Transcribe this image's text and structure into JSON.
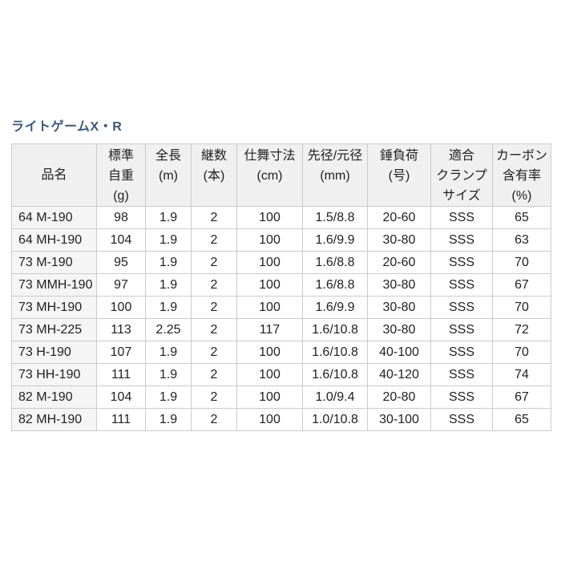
{
  "page": {
    "title": "ライトゲームX・R"
  },
  "colors": {
    "title_text": "#3b5878",
    "header_bg": "#f0f0f0",
    "row_label_bg": "#f5f5f5",
    "border": "#cbcbcb",
    "body_text": "#1f1f1f"
  },
  "table": {
    "headers": [
      "品名",
      "標準\n自重\n(g)",
      "全長\n(m)",
      "継数\n(本)",
      "仕舞寸法\n(cm)",
      "先径/元径\n(mm)",
      "錘負荷\n(号)",
      "適合\nクランプ\nサイズ",
      "カーボン\n含有率\n(%)"
    ],
    "rows": [
      [
        "64 M-190",
        "98",
        "1.9",
        "2",
        "100",
        "1.5/8.8",
        "20-60",
        "SSS",
        "65"
      ],
      [
        "64 MH-190",
        "104",
        "1.9",
        "2",
        "100",
        "1.6/9.9",
        "30-80",
        "SSS",
        "63"
      ],
      [
        "73 M-190",
        "95",
        "1.9",
        "2",
        "100",
        "1.6/8.8",
        "20-60",
        "SSS",
        "70"
      ],
      [
        "73 MMH-190",
        "97",
        "1.9",
        "2",
        "100",
        "1.6/8.8",
        "30-80",
        "SSS",
        "67"
      ],
      [
        "73 MH-190",
        "100",
        "1.9",
        "2",
        "100",
        "1.6/9.9",
        "30-80",
        "SSS",
        "70"
      ],
      [
        "73 MH-225",
        "113",
        "2.25",
        "2",
        "117",
        "1.6/10.8",
        "30-80",
        "SSS",
        "72"
      ],
      [
        "73 H-190",
        "107",
        "1.9",
        "2",
        "100",
        "1.6/10.8",
        "40-100",
        "SSS",
        "70"
      ],
      [
        "73 HH-190",
        "111",
        "1.9",
        "2",
        "100",
        "1.6/10.8",
        "40-120",
        "SSS",
        "74"
      ],
      [
        "82 M-190",
        "104",
        "1.9",
        "2",
        "100",
        "1.0/9.4",
        "20-80",
        "SSS",
        "67"
      ],
      [
        "82 MH-190",
        "111",
        "1.9",
        "2",
        "100",
        "1.0/10.8",
        "30-100",
        "SSS",
        "65"
      ]
    ]
  }
}
